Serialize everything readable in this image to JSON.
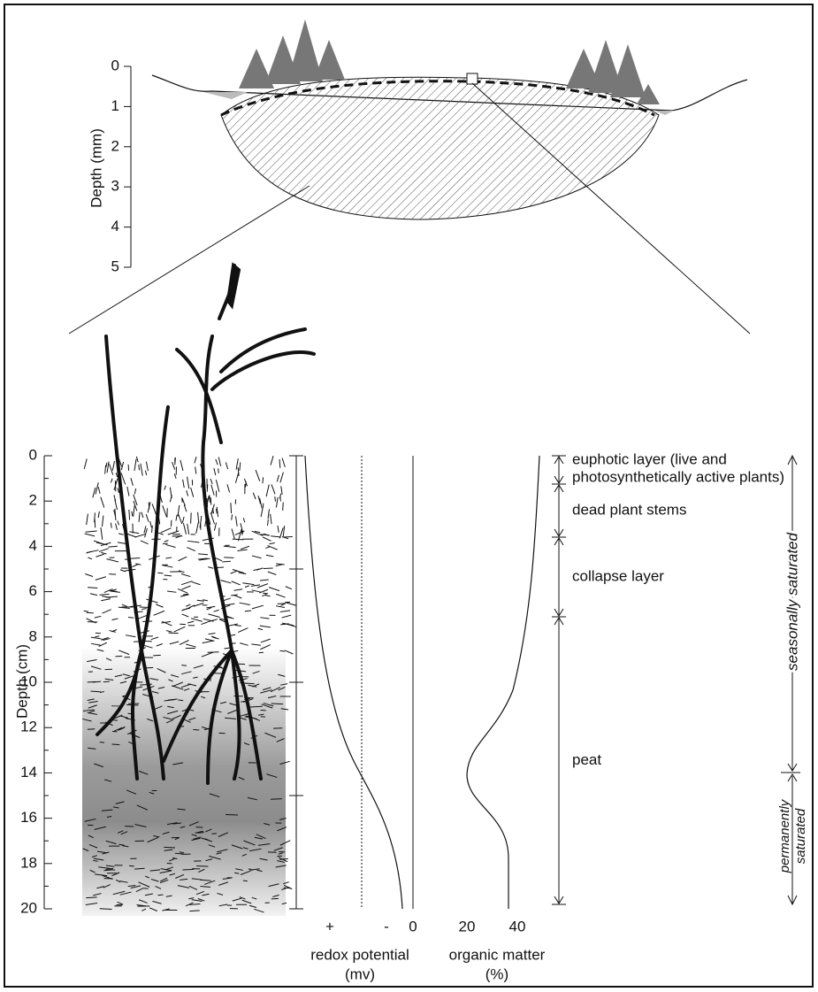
{
  "top_section": {
    "axis_label": "Depth (mm)",
    "ticks": [
      0,
      1,
      2,
      3,
      4,
      5
    ]
  },
  "profile": {
    "axis_label": "Depth (cm)",
    "ticks": [
      0,
      2,
      4,
      6,
      8,
      10,
      12,
      14,
      16,
      18,
      20
    ]
  },
  "layers": [
    {
      "label": [
        "euphotic layer (live and",
        "photosynthetically active plants)"
      ]
    },
    {
      "label": [
        "dead plant stems"
      ]
    },
    {
      "label": [
        "collapse layer"
      ]
    },
    {
      "label": [
        "peat"
      ]
    }
  ],
  "redox": {
    "ticks": [
      "+",
      "-"
    ],
    "label": [
      "redox potential",
      "(mv)"
    ]
  },
  "organic": {
    "ticks": [
      0,
      20,
      40
    ],
    "label": [
      "organic matter",
      "(%)"
    ]
  },
  "saturation": {
    "seasonal": "seasonally saturated",
    "permanent": [
      "permanently",
      "saturated"
    ]
  }
}
